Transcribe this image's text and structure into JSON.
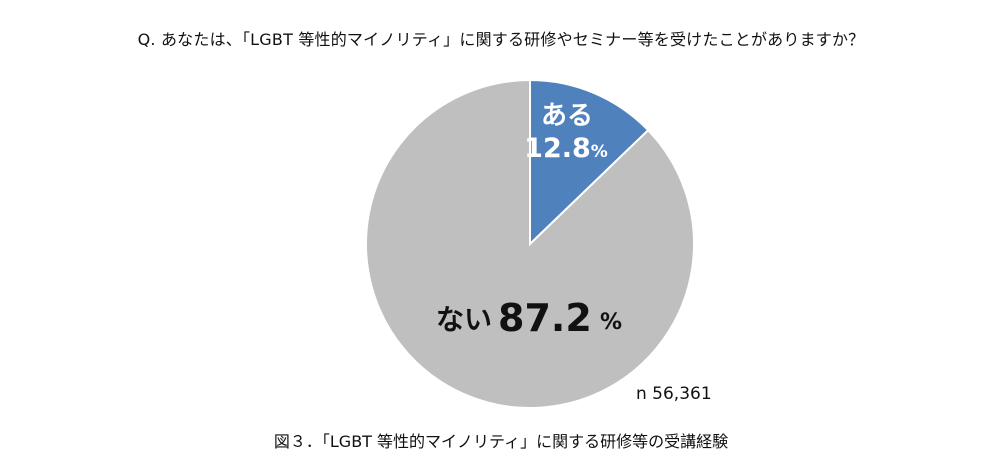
{
  "question": "Q. あなたは、「LGBT 等性的マイノリティ」に関する研修やセミナー等を受けたことがありますか？",
  "caption": "図３．「LGBT 等性的マイノリティ」に関する研修等の受講経験",
  "sample_size": "n 56,361",
  "chart_data": {
    "type": "pie",
    "title": "",
    "slices": [
      {
        "label": "ある",
        "value": 12.8,
        "display": "12.8",
        "unit": "%",
        "color": "#4f81bd"
      },
      {
        "label": "ない",
        "value": 87.2,
        "display": "87.2",
        "unit": "%",
        "color": "#bfbfbf"
      }
    ]
  }
}
